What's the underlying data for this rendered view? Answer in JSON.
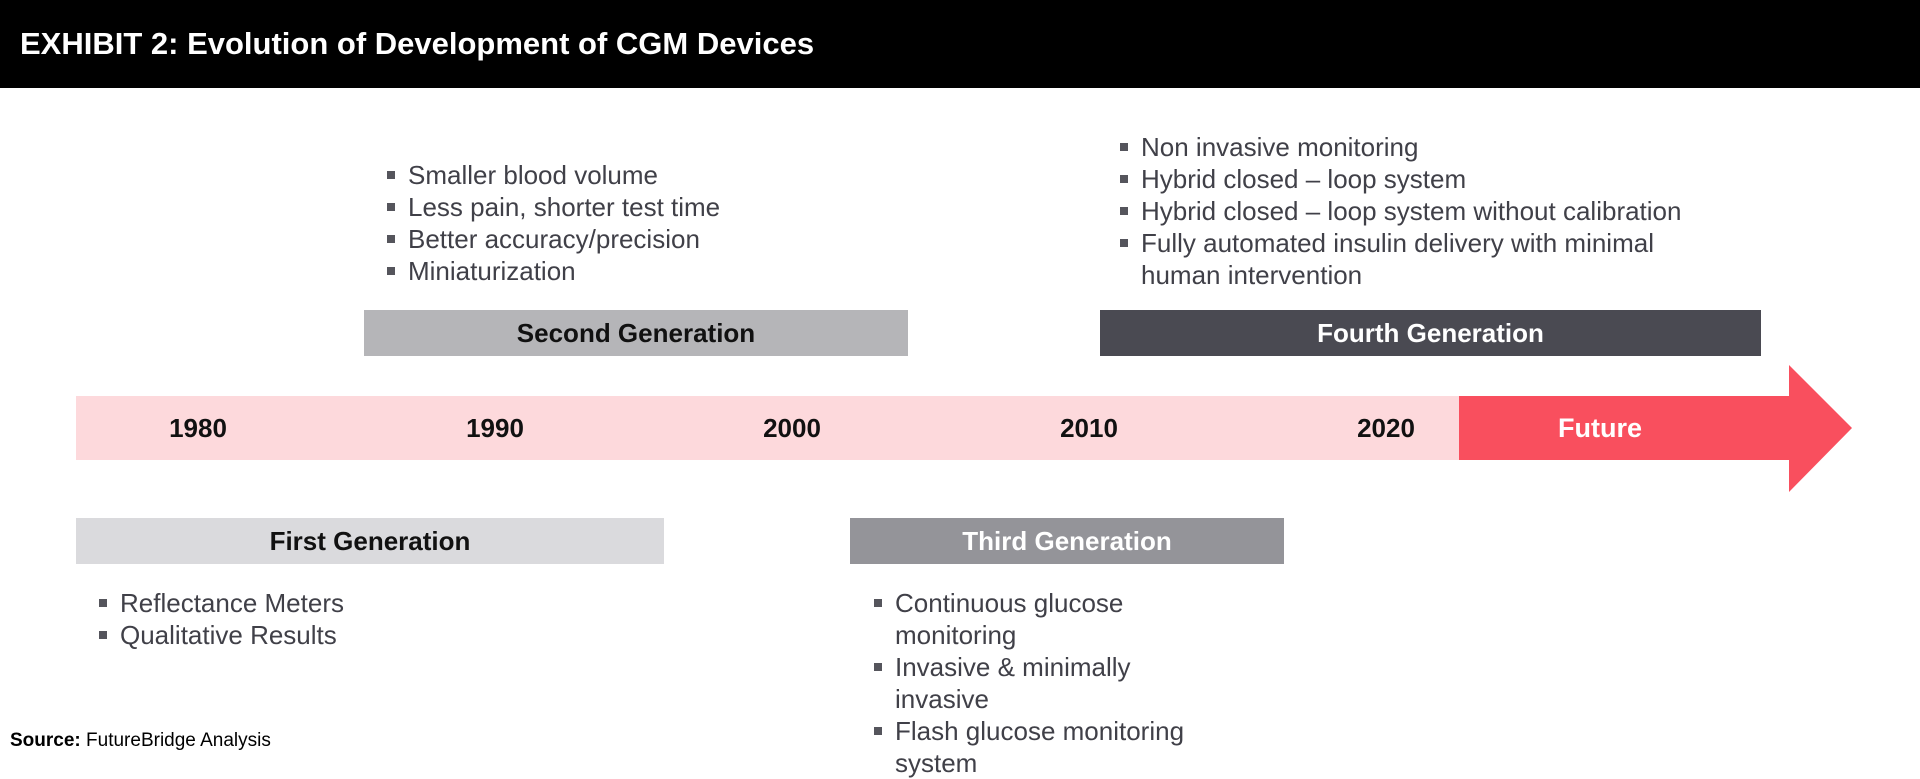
{
  "title": "EXHIBIT 2: Evolution of Development of CGM Devices",
  "colors": {
    "header_bg": "#000000",
    "timeline_bar": "#FDD9DC",
    "future_arrow": "#F94F5E",
    "first_generation": "#DADADD",
    "second_generation": "#B5B5B8",
    "third_generation": "#949499",
    "fourth_generation": "#4A4A52"
  },
  "timeline": {
    "years": [
      "1980",
      "1990",
      "2000",
      "2010",
      "2020"
    ],
    "future_label": "Future"
  },
  "generations": {
    "first": {
      "label": "First Generation",
      "bullets": [
        "Reflectance Meters",
        "Qualitative Results"
      ]
    },
    "second": {
      "label": "Second Generation",
      "bullets": [
        "Smaller blood volume",
        "Less pain, shorter test time",
        "Better accuracy/precision",
        "Miniaturization"
      ]
    },
    "third": {
      "label": "Third Generation",
      "bullets": [
        "Continuous glucose monitoring",
        "Invasive & minimally invasive",
        "Flash glucose monitoring system"
      ]
    },
    "fourth": {
      "label": "Fourth Generation",
      "bullets": [
        "Non invasive monitoring",
        "Hybrid closed – loop system",
        "Hybrid closed – loop system without calibration",
        "Fully automated insulin delivery with minimal human intervention"
      ]
    }
  },
  "source": {
    "label": "Source:",
    "text": "FutureBridge Analysis"
  }
}
